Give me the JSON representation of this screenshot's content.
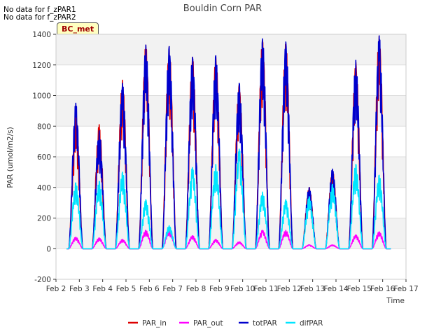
{
  "notes": [
    "No data for f_zPAR1",
    "No data for f_zPAR2"
  ],
  "badge": "BC_met",
  "chart_data": {
    "type": "line",
    "title": "Bouldin Corn PAR",
    "xlabel": "Time",
    "ylabel": "PAR (umol/m2/s)",
    "ylim": [
      -200,
      1400
    ],
    "yticks": [
      -200,
      0,
      200,
      400,
      600,
      800,
      1000,
      1200,
      1400
    ],
    "xlim": [
      2,
      17
    ],
    "xticks": [
      2,
      3,
      4,
      5,
      6,
      7,
      8,
      9,
      10,
      11,
      12,
      13,
      14,
      15,
      16,
      17
    ],
    "xtick_labels": [
      "Feb 2",
      "Feb 3",
      "Feb 4",
      "Feb 5",
      "Feb 6",
      "Feb 7",
      "Feb 8",
      "Feb 9",
      "Feb 10",
      "Feb 11",
      "Feb 12",
      "Feb 13",
      "Feb 14",
      "Feb 15",
      "Feb 16",
      "Feb 17"
    ],
    "days": [
      2.85,
      3.85,
      4.85,
      5.85,
      6.85,
      7.85,
      8.85,
      9.85,
      10.85,
      11.85,
      12.85,
      13.85,
      14.85,
      15.85
    ],
    "series": [
      {
        "name": "PAR_in",
        "color": "#dd0000",
        "peaks": [
          860,
          810,
          1100,
          1330,
          1320,
          1250,
          1250,
          1070,
          1360,
          1340,
          400,
          510,
          1220,
          1390
        ]
      },
      {
        "name": "totPAR",
        "color": "#0000cc",
        "peaks": [
          950,
          770,
          1080,
          1330,
          1320,
          1250,
          1260,
          1080,
          1370,
          1350,
          400,
          520,
          1230,
          1390
        ]
      },
      {
        "name": "PAR_out",
        "color": "#ff00ff",
        "peaks": [
          75,
          70,
          60,
          120,
          120,
          85,
          60,
          45,
          120,
          120,
          25,
          25,
          90,
          110
        ]
      },
      {
        "name": "difPAR",
        "color": "#00e5ff",
        "peaks": [
          430,
          440,
          500,
          320,
          150,
          530,
          550,
          650,
          370,
          320,
          340,
          420,
          550,
          480
        ]
      }
    ],
    "legend": [
      "PAR_in",
      "PAR_out",
      "totPAR",
      "difPAR"
    ],
    "legend_position": "bottom"
  }
}
